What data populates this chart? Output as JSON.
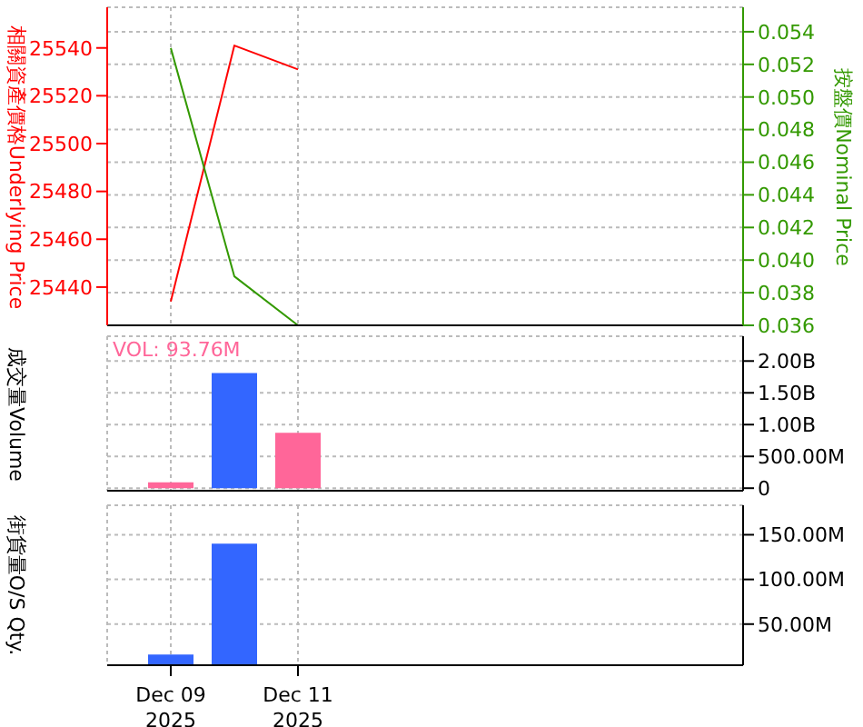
{
  "chart_data": [
    {
      "type": "line",
      "ylabel": "相關資產價格Underlying Price",
      "y2label": "按盤價Nominal Price",
      "x": [
        "2025-12-09",
        "2025-12-10",
        "2025-12-11"
      ],
      "xlim": [
        "2025-12-08",
        "2025-12-18"
      ],
      "xticks": [
        {
          "value": "2025-12-09",
          "label": null
        },
        {
          "value": "2025-12-11",
          "label": null
        }
      ],
      "ylim": [
        25424,
        25557
      ],
      "yticks": [
        25440,
        25460,
        25480,
        25500,
        25520,
        25540
      ],
      "y2lim": [
        0.036,
        0.0555
      ],
      "y2ticks": [
        0.036,
        0.038,
        {
          "value": 0.04,
          "label": "0.040"
        },
        0.042,
        0.044,
        0.046,
        0.048,
        {
          "value": 0.05,
          "label": "0.050"
        },
        0.052,
        0.054
      ],
      "grid": true,
      "tick_labels": "y",
      "series": [
        {
          "color": "#ff0000",
          "values": [
            25434,
            25541,
            25531
          ]
        },
        {
          "color": "#339900",
          "axis": "y2",
          "values": [
            0.053,
            0.039,
            0.036
          ]
        }
      ]
    },
    {
      "type": "bar",
      "ylabel": "成交量Volume",
      "annotations": [
        "VOL: 93.76M"
      ],
      "x": [
        "2025-12-09",
        "2025-12-10",
        "2025-12-11"
      ],
      "xlim": [
        "2025-12-08",
        "2025-12-18"
      ],
      "xticks": [
        {
          "value": "2025-12-09",
          "label": null
        },
        {
          "value": "2025-12-11",
          "label": null
        }
      ],
      "ylim": [
        -40000000,
        2390000000
      ],
      "yticks": [
        0,
        {
          "value": 500000000,
          "label": "500.00M"
        },
        {
          "value": 1000000000,
          "label": "1.00B"
        },
        {
          "value": 1500000000,
          "label": "1.50B"
        },
        {
          "value": 2000000000,
          "label": "2.00B"
        }
      ],
      "grid": true,
      "tick_labels": "y",
      "values": [
        94000000,
        1810000000,
        870000000
      ],
      "colors": [
        "#ff6699",
        "#3366ff",
        "#ff6699"
      ]
    },
    {
      "type": "bar",
      "ylabel": "街貨量O/S Qty.",
      "x": [
        "2025-12-09",
        "2025-12-10"
      ],
      "xlim": [
        "2025-12-08",
        "2025-12-18"
      ],
      "xticks": [
        {
          "value": "2025-12-09",
          "label": "Dec 09 2025"
        },
        {
          "value": "2025-12-11",
          "label": "Dec 11 2025"
        }
      ],
      "ylim": [
        4000000,
        183000000
      ],
      "yticks": [
        {
          "value": 50000000,
          "label": "50.00M"
        },
        {
          "value": 100000000,
          "label": "100.00M"
        },
        {
          "value": 150000000,
          "label": "150.00M"
        }
      ],
      "grid": true,
      "series": [
        {
          "color": "#3366ff",
          "values": [
            16000000,
            140000000
          ]
        }
      ]
    }
  ]
}
